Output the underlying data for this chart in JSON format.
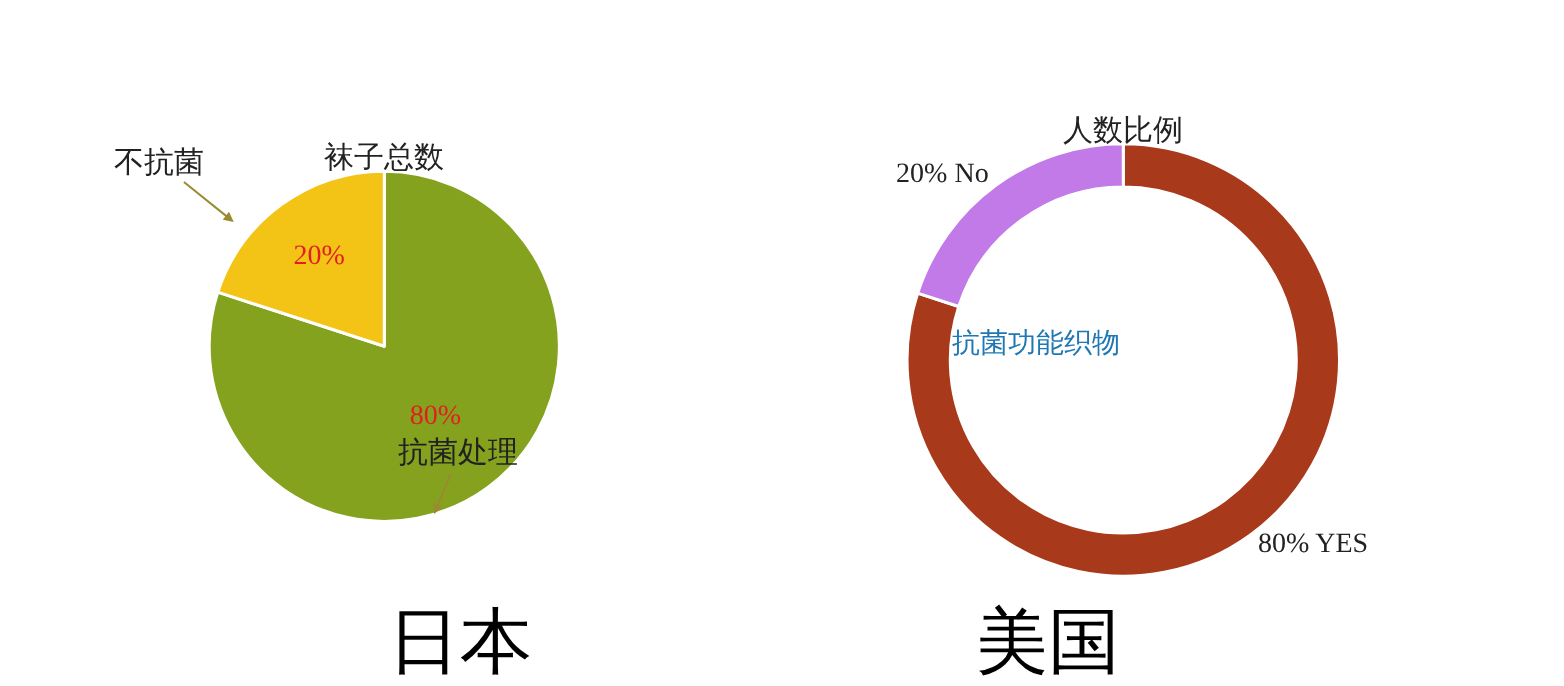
{
  "chart_data": [
    {
      "type": "pie",
      "title": "袜子总数",
      "categories": [
        "抗菌处理",
        "不抗菌"
      ],
      "values": [
        80,
        20
      ],
      "colors": [
        "#84a21e",
        "#f3c316"
      ],
      "value_labels": [
        "80%",
        "20%"
      ],
      "annotations": [
        "日本"
      ]
    },
    {
      "type": "donut",
      "title": "人数比例",
      "categories": [
        "YES",
        "No"
      ],
      "values": [
        80,
        20
      ],
      "colors": [
        "#a8391a",
        "#c27ae8"
      ],
      "value_labels": [
        "80%",
        "20%"
      ],
      "annotations": [
        "抗菌功能织物",
        "美国"
      ]
    }
  ]
}
